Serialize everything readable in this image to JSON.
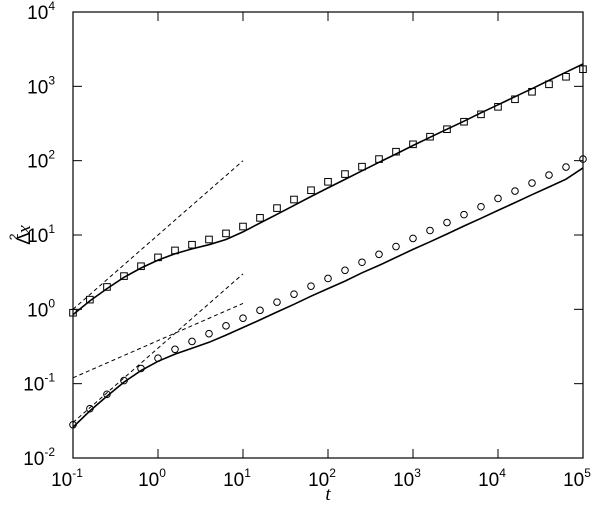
{
  "chart_data": {
    "type": "line",
    "xlabel": "t",
    "ylabel": {
      "base": "Δ",
      "sup": "2",
      "tail": "x"
    },
    "xscale": "log",
    "yscale": "log",
    "xlim": [
      0.1,
      100000
    ],
    "ylim": [
      0.01,
      10000
    ],
    "xticks": [
      {
        "value": 0.1,
        "label": "10",
        "exponent": "-1"
      },
      {
        "value": 1,
        "label": "10",
        "exponent": "0"
      },
      {
        "value": 10,
        "label": "10",
        "exponent": "1"
      },
      {
        "value": 100,
        "label": "10",
        "exponent": "2"
      },
      {
        "value": 1000,
        "label": "10",
        "exponent": "3"
      },
      {
        "value": 10000,
        "label": "10",
        "exponent": "4"
      },
      {
        "value": 100000,
        "label": "10",
        "exponent": "5"
      }
    ],
    "yticks": [
      {
        "value": 0.01,
        "label": "10",
        "exponent": "-2"
      },
      {
        "value": 0.1,
        "label": "10",
        "exponent": "-1"
      },
      {
        "value": 1,
        "label": "10",
        "exponent": "0"
      },
      {
        "value": 10,
        "label": "10",
        "exponent": "1"
      },
      {
        "value": 100,
        "label": "10",
        "exponent": "2"
      },
      {
        "value": 1000,
        "label": "10",
        "exponent": "3"
      },
      {
        "value": 10000,
        "label": "10",
        "exponent": "4"
      }
    ],
    "series": [
      {
        "marker": "square",
        "line": "none",
        "color": "#000",
        "x": [
          0.1,
          0.158,
          0.251,
          0.398,
          0.631,
          1,
          1.585,
          2.512,
          3.981,
          6.31,
          10,
          15.85,
          25.12,
          39.81,
          63.1,
          100,
          158.5,
          251.2,
          398.1,
          631,
          1000,
          1585,
          2512,
          3981,
          6310,
          10000,
          15850,
          25120,
          39810,
          63100,
          100000
        ],
        "values": [
          0.9,
          1.35,
          2.0,
          2.8,
          3.8,
          5.0,
          6.2,
          7.4,
          8.7,
          10.5,
          13,
          17,
          23,
          30,
          40,
          52,
          66,
          83,
          105,
          132,
          166,
          210,
          265,
          334,
          420,
          530,
          670,
          845,
          1065,
          1345,
          1700
        ]
      },
      {
        "marker": "none",
        "line": "solid",
        "color": "#000",
        "x": [
          0.1,
          0.158,
          0.251,
          0.398,
          0.631,
          1,
          1.585,
          2.512,
          3.981,
          6.31,
          10,
          15.85,
          25.12,
          39.81,
          63.1,
          100,
          158.5,
          251.2,
          398.1,
          631,
          1000,
          1585,
          2512,
          3981,
          6310,
          10000,
          15850,
          25120,
          39810,
          63100,
          100000
        ],
        "values": [
          0.85,
          1.3,
          1.9,
          2.7,
          3.6,
          4.6,
          5.6,
          6.5,
          7.4,
          8.7,
          11,
          14.5,
          19,
          25,
          33,
          43,
          56,
          73,
          95,
          123,
          160,
          206,
          265,
          340,
          440,
          565,
          725,
          930,
          1200,
          1550,
          2000
        ]
      },
      {
        "marker": "circle",
        "line": "none",
        "color": "#000",
        "x": [
          0.1,
          0.158,
          0.251,
          0.398,
          0.631,
          1,
          1.585,
          2.512,
          3.981,
          6.31,
          10,
          15.85,
          25.12,
          39.81,
          63.1,
          100,
          158.5,
          251.2,
          398.1,
          631,
          1000,
          1585,
          2512,
          3981,
          6310,
          10000,
          15850,
          25120,
          39810,
          63100,
          100000
        ],
        "values": [
          0.028,
          0.046,
          0.072,
          0.11,
          0.16,
          0.22,
          0.29,
          0.37,
          0.47,
          0.6,
          0.76,
          0.97,
          1.25,
          1.6,
          2.05,
          2.6,
          3.35,
          4.3,
          5.5,
          7,
          9,
          11.5,
          14.7,
          18.8,
          24,
          31,
          39,
          50,
          64,
          82,
          105
        ]
      },
      {
        "marker": "none",
        "line": "solid",
        "color": "#000",
        "x": [
          0.1,
          0.158,
          0.251,
          0.398,
          0.631,
          1,
          1.585,
          2.512,
          3.981,
          6.31,
          10,
          15.85,
          25.12,
          39.81,
          63.1,
          100,
          158.5,
          251.2,
          398.1,
          631,
          1000,
          1585,
          2512,
          3981,
          6310,
          10000,
          15850,
          25120,
          39810,
          63100,
          100000
        ],
        "values": [
          0.026,
          0.043,
          0.068,
          0.105,
          0.15,
          0.2,
          0.25,
          0.3,
          0.36,
          0.45,
          0.57,
          0.72,
          0.92,
          1.17,
          1.5,
          1.9,
          2.4,
          3.1,
          3.9,
          5,
          6.4,
          8.1,
          10.3,
          13.2,
          16.8,
          21.4,
          27.3,
          34.8,
          44.3,
          56.4,
          80
        ]
      },
      {
        "marker": "none",
        "line": "dashed",
        "color": "#000",
        "x": [
          0.1,
          10
        ],
        "values": [
          1,
          100
        ]
      },
      {
        "marker": "none",
        "line": "dashed",
        "color": "#000",
        "x": [
          0.1,
          10
        ],
        "values": [
          0.03,
          3
        ]
      },
      {
        "marker": "none",
        "line": "dashed",
        "color": "#000",
        "x": [
          0.1,
          10
        ],
        "values": [
          0.12,
          1.2
        ]
      }
    ]
  }
}
